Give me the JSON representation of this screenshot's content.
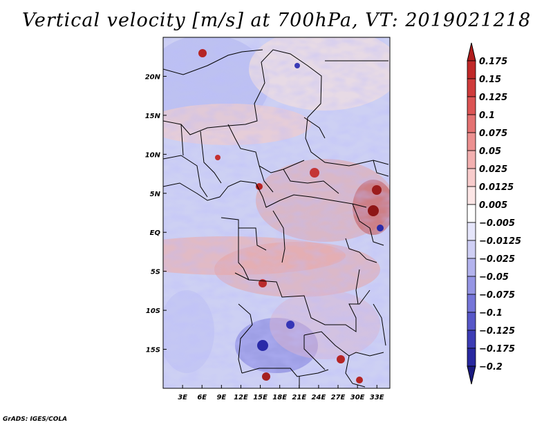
{
  "title": "Vertical velocity [m/s] at 700hPa, VT: 2019021218",
  "credit": "GrADS: IGES/COLA",
  "chart_data": {
    "type": "heatmap",
    "title": "Vertical velocity [m/s] at 700hPa, VT: 2019021218",
    "variable": "Vertical velocity",
    "units": "m/s",
    "level": "700hPa",
    "valid_time": "2019021218",
    "x_axis": {
      "range": [
        0,
        35
      ],
      "ticks": [
        3,
        6,
        9,
        12,
        15,
        18,
        21,
        24,
        27,
        30,
        33
      ],
      "tick_labels": [
        "3E",
        "6E",
        "9E",
        "12E",
        "15E",
        "18E",
        "21E",
        "24E",
        "27E",
        "30E",
        "33E"
      ]
    },
    "y_axis": {
      "range": [
        -20,
        25
      ],
      "ticks": [
        20,
        15,
        10,
        5,
        0,
        -5,
        -10,
        -15
      ],
      "tick_labels": [
        "20N",
        "15N",
        "10N",
        "5N",
        "EQ",
        "5S",
        "10S",
        "15S"
      ]
    },
    "colorbar": {
      "levels": [
        0.175,
        0.15,
        0.125,
        0.1,
        0.075,
        0.05,
        0.025,
        0.0125,
        0.005,
        -0.005,
        -0.0125,
        -0.025,
        -0.05,
        -0.075,
        -0.1,
        -0.125,
        -0.175,
        -0.2
      ],
      "level_labels": [
        "0.175",
        "0.15",
        "0.125",
        "0.1",
        "0.075",
        "0.05",
        "0.025",
        "0.0125",
        "0.005",
        "−0.005",
        "−0.0125",
        "−0.025",
        "−0.05",
        "−0.075",
        "−0.1",
        "−0.125",
        "−0.175",
        "−0.2"
      ],
      "colors": [
        "#b01d1d",
        "#c02828",
        "#cf3b3b",
        "#dc5454",
        "#e47272",
        "#ec9090",
        "#f3b0b0",
        "#f8cccc",
        "#fce6e6",
        "#ffffff",
        "#e6e6fb",
        "#cfcff5",
        "#b3b3ee",
        "#9595e4",
        "#7575d8",
        "#5757c8",
        "#3c3cb4",
        "#2828a0",
        "#1a1a80"
      ]
    }
  }
}
